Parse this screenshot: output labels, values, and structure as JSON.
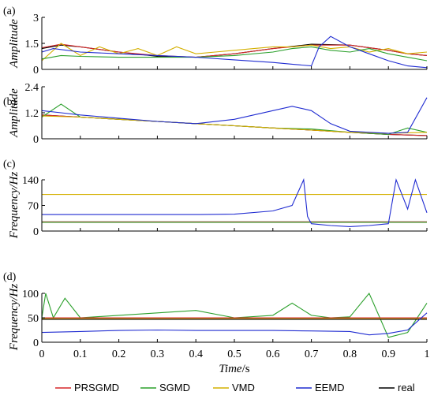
{
  "chart_data": {
    "type": "line",
    "xlabel_italic": "Time",
    "xlabel_unit": "/s",
    "xlim": [
      0,
      1
    ],
    "xticks": [
      0,
      0.1,
      0.2,
      0.3,
      0.4,
      0.5,
      0.6,
      0.7,
      0.8,
      0.9,
      1
    ],
    "xtick_labels": [
      "0",
      "0.1",
      "0.2",
      "0.3",
      "0.4",
      "0.5",
      "0.6",
      "0.7",
      "0.8",
      "0.9",
      "1"
    ],
    "legend": {
      "placement": "bottom",
      "entries": [
        {
          "name": "PRSGMD",
          "color": "#d62728"
        },
        {
          "name": "SGMD",
          "color": "#2ca02c"
        },
        {
          "name": "VMD",
          "color": "#d4b000"
        },
        {
          "name": "EEMD",
          "color": "#1f2bd1"
        },
        {
          "name": "real",
          "color": "#000000"
        }
      ]
    },
    "panels": [
      {
        "label": "(a)",
        "ylabel": "Amplitude",
        "ylabel_unit": "",
        "ylim": [
          0,
          3
        ],
        "yticks": [
          0,
          1.5,
          3
        ],
        "ytick_labels": [
          "0",
          "1.5",
          "3"
        ],
        "series": [
          {
            "name": "real",
            "x": [
              0,
              0.05,
              0.1,
              0.2,
              0.3,
              0.4,
              0.5,
              0.6,
              0.7,
              0.8,
              0.9,
              0.95,
              1
            ],
            "y": [
              1.2,
              1.4,
              1.3,
              1.0,
              0.75,
              0.7,
              0.9,
              1.2,
              1.45,
              1.4,
              1.1,
              0.9,
              0.8
            ]
          },
          {
            "name": "PRSGMD",
            "x": [
              0,
              0.05,
              0.1,
              0.2,
              0.3,
              0.4,
              0.5,
              0.6,
              0.7,
              0.8,
              0.9,
              0.95,
              1
            ],
            "y": [
              1.25,
              1.45,
              1.3,
              1.0,
              0.8,
              0.7,
              0.9,
              1.2,
              1.4,
              1.4,
              1.1,
              0.9,
              0.8
            ]
          },
          {
            "name": "VMD",
            "x": [
              0,
              0.05,
              0.1,
              0.15,
              0.2,
              0.25,
              0.3,
              0.35,
              0.4,
              0.45,
              0.5,
              0.55,
              0.6,
              0.65,
              0.7,
              0.75,
              0.8,
              0.85,
              0.9,
              0.95,
              1
            ],
            "y": [
              0.5,
              1.5,
              0.8,
              1.3,
              0.9,
              1.2,
              0.8,
              1.3,
              0.9,
              1.0,
              1.1,
              1.2,
              1.3,
              1.3,
              1.4,
              1.2,
              1.3,
              1.0,
              1.2,
              0.9,
              1.0
            ]
          },
          {
            "name": "SGMD",
            "x": [
              0,
              0.05,
              0.1,
              0.2,
              0.3,
              0.4,
              0.5,
              0.6,
              0.65,
              0.7,
              0.75,
              0.8,
              0.85,
              0.9,
              0.95,
              1
            ],
            "y": [
              0.6,
              0.8,
              0.75,
              0.7,
              0.7,
              0.7,
              0.8,
              1.0,
              1.2,
              1.3,
              1.1,
              1.0,
              1.2,
              0.9,
              0.7,
              0.5
            ]
          },
          {
            "name": "EEMD",
            "x": [
              0,
              0.03,
              0.1,
              0.2,
              0.3,
              0.4,
              0.5,
              0.6,
              0.65,
              0.7,
              0.72,
              0.75,
              0.8,
              0.85,
              0.9,
              0.95,
              1
            ],
            "y": [
              1.0,
              1.2,
              1.0,
              0.9,
              0.8,
              0.7,
              0.55,
              0.4,
              0.3,
              0.2,
              1.3,
              1.9,
              1.3,
              0.9,
              0.5,
              0.2,
              0.1
            ]
          }
        ]
      },
      {
        "label": "(b)",
        "ylabel": "Amplitude",
        "ylabel_unit": "",
        "ylim": [
          0,
          2.4
        ],
        "yticks": [
          0,
          1.2,
          2.4
        ],
        "ytick_labels": [
          "0",
          "1.2",
          "2.4"
        ],
        "series": [
          {
            "name": "real",
            "x": [
              0,
              0.1,
              0.2,
              0.3,
              0.4,
              0.5,
              0.6,
              0.7,
              0.8,
              0.9,
              1
            ],
            "y": [
              1.1,
              1.0,
              0.9,
              0.8,
              0.7,
              0.6,
              0.5,
              0.4,
              0.3,
              0.2,
              0.15
            ]
          },
          {
            "name": "PRSGMD",
            "x": [
              0,
              0.1,
              0.2,
              0.3,
              0.4,
              0.5,
              0.6,
              0.7,
              0.8,
              0.9,
              1
            ],
            "y": [
              1.1,
              1.0,
              0.9,
              0.8,
              0.7,
              0.6,
              0.5,
              0.4,
              0.3,
              0.2,
              0.15
            ]
          },
          {
            "name": "SGMD",
            "x": [
              0,
              0.05,
              0.1,
              0.2,
              0.3,
              0.4,
              0.5,
              0.6,
              0.7,
              0.8,
              0.9,
              0.95,
              1
            ],
            "y": [
              1.0,
              1.6,
              1.0,
              0.9,
              0.8,
              0.7,
              0.6,
              0.5,
              0.45,
              0.3,
              0.2,
              0.5,
              0.3
            ]
          },
          {
            "name": "VMD",
            "x": [
              0,
              0.1,
              0.2,
              0.3,
              0.4,
              0.5,
              0.6,
              0.7,
              0.8,
              0.9,
              1
            ],
            "y": [
              1.05,
              1.0,
              0.9,
              0.8,
              0.7,
              0.6,
              0.5,
              0.4,
              0.3,
              0.25,
              0.3
            ]
          },
          {
            "name": "EEMD",
            "x": [
              0,
              0.05,
              0.1,
              0.2,
              0.3,
              0.4,
              0.5,
              0.6,
              0.65,
              0.7,
              0.75,
              0.8,
              0.85,
              0.9,
              0.95,
              1
            ],
            "y": [
              1.3,
              1.2,
              1.1,
              0.95,
              0.8,
              0.7,
              0.9,
              1.3,
              1.5,
              1.3,
              0.7,
              0.35,
              0.3,
              0.25,
              0.3,
              1.9
            ]
          }
        ]
      },
      {
        "label": "(c)",
        "ylabel": "Frequency",
        "ylabel_unit": "/Hz",
        "ylim": [
          0,
          140
        ],
        "yticks": [
          0,
          70,
          140
        ],
        "ytick_labels": [
          "0",
          "70",
          "140"
        ],
        "series": [
          {
            "name": "real",
            "x": [
              0,
              0.5,
              1
            ],
            "y": [
              25,
              25,
              25
            ]
          },
          {
            "name": "PRSGMD",
            "x": [
              0,
              0.5,
              1
            ],
            "y": [
              25,
              25,
              25
            ]
          },
          {
            "name": "SGMD",
            "x": [
              0,
              0.5,
              1
            ],
            "y": [
              24,
              24,
              24
            ]
          },
          {
            "name": "VMD",
            "x": [
              0,
              0.5,
              1
            ],
            "y": [
              100,
              100,
              100
            ]
          },
          {
            "name": "EEMD",
            "x": [
              0,
              0.1,
              0.2,
              0.3,
              0.4,
              0.5,
              0.6,
              0.65,
              0.68,
              0.69,
              0.7,
              0.75,
              0.8,
              0.85,
              0.9,
              0.92,
              0.95,
              0.97,
              1
            ],
            "y": [
              45,
              45,
              45,
              45,
              45,
              46,
              55,
              70,
              140,
              40,
              20,
              15,
              12,
              15,
              20,
              140,
              60,
              140,
              50
            ]
          }
        ]
      },
      {
        "label": "(d)",
        "ylabel": "Frequency",
        "ylabel_unit": "/Hz",
        "ylim": [
          0,
          100
        ],
        "yticks": [
          0,
          50,
          100
        ],
        "ytick_labels": [
          "0",
          "50",
          "100"
        ],
        "series": [
          {
            "name": "SGMD",
            "x": [
              0,
              0.01,
              0.03,
              0.06,
              0.1,
              0.2,
              0.3,
              0.4,
              0.5,
              0.6,
              0.65,
              0.7,
              0.75,
              0.8,
              0.85,
              0.9,
              0.95,
              1
            ],
            "y": [
              50,
              100,
              50,
              90,
              50,
              55,
              60,
              65,
              50,
              55,
              80,
              55,
              50,
              52,
              100,
              10,
              20,
              80
            ]
          },
          {
            "name": "VMD",
            "x": [
              0,
              0.5,
              1
            ],
            "y": [
              48,
              48,
              48
            ]
          },
          {
            "name": "PRSGMD",
            "x": [
              0,
              0.5,
              1
            ],
            "y": [
              50,
              50,
              50
            ]
          },
          {
            "name": "real",
            "x": [
              0,
              0.5,
              1
            ],
            "y": [
              47,
              47,
              47
            ]
          },
          {
            "name": "EEMD",
            "x": [
              0,
              0.1,
              0.2,
              0.3,
              0.4,
              0.5,
              0.6,
              0.7,
              0.8,
              0.85,
              0.9,
              0.95,
              1
            ],
            "y": [
              20,
              22,
              24,
              25,
              24,
              24,
              24,
              23,
              22,
              15,
              18,
              25,
              60
            ]
          }
        ]
      }
    ]
  }
}
